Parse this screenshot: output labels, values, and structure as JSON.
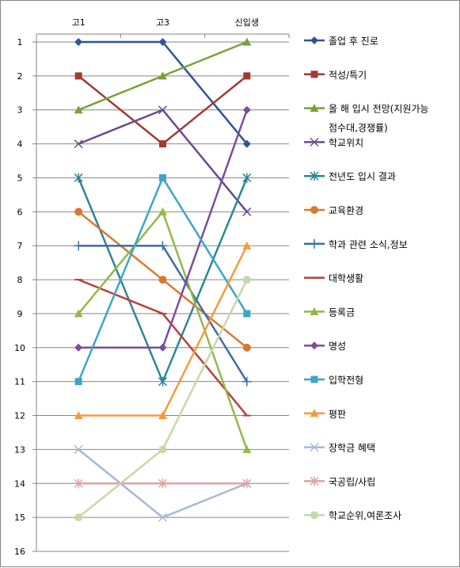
{
  "chart_data": {
    "type": "line",
    "title": "",
    "xlabel": "",
    "ylabel": "",
    "y_reversed": true,
    "ylim": [
      1,
      16
    ],
    "x_axis_position": "top",
    "grid": "horizontal",
    "legend_position": "right",
    "categories": [
      "고1",
      "고3",
      "신입생"
    ],
    "y_ticks": [
      1,
      2,
      3,
      4,
      5,
      6,
      7,
      8,
      9,
      10,
      11,
      12,
      13,
      14,
      15,
      16
    ],
    "series": [
      {
        "name": "졸업 후 진로",
        "values": [
          1,
          1,
          4
        ],
        "color": "#2F5496",
        "marker": "diamond"
      },
      {
        "name": "적성/특기",
        "values": [
          2,
          4,
          2
        ],
        "color": "#A13A33",
        "marker": "square"
      },
      {
        "name": "올 해 입시 전망(지원가능 점수대,경쟁률)",
        "legend_lines": [
          "올 해 입시 전망(지원가능",
          "점수대,경쟁률)"
        ],
        "values": [
          3,
          2,
          1
        ],
        "color": "#78A13A",
        "marker": "triangle"
      },
      {
        "name": "학교위치",
        "values": [
          4,
          3,
          6
        ],
        "color": "#6B4A8E",
        "marker": "x"
      },
      {
        "name": "전년도 입시 결과",
        "values": [
          5,
          11,
          5
        ],
        "color": "#2E8596",
        "marker": "star"
      },
      {
        "name": "교육환경",
        "values": [
          6,
          8,
          10
        ],
        "color": "#D9782E",
        "marker": "circle"
      },
      {
        "name": "학과 관련 소식,정보",
        "values": [
          7,
          7,
          11
        ],
        "color": "#3D6EA8",
        "marker": "plus"
      },
      {
        "name": "대학생활",
        "values": [
          8,
          9,
          12
        ],
        "color": "#B8403B",
        "marker": "dash"
      },
      {
        "name": "등록금",
        "values": [
          9,
          6,
          13
        ],
        "color": "#93B84B",
        "marker": "triangle"
      },
      {
        "name": "명성",
        "values": [
          10,
          10,
          3
        ],
        "color": "#7A4C9E",
        "marker": "diamond"
      },
      {
        "name": "입학전형",
        "values": [
          11,
          5,
          9
        ],
        "color": "#3CA6C4",
        "marker": "square"
      },
      {
        "name": "평판",
        "values": [
          12,
          12,
          7
        ],
        "color": "#F59A3C",
        "marker": "triangle"
      },
      {
        "name": "장학금 혜택",
        "values": [
          13,
          15,
          14
        ],
        "color": "#A6B8D9",
        "marker": "x"
      },
      {
        "name": "국공립/사립",
        "values": [
          14,
          14,
          14
        ],
        "color": "#DBA4A4",
        "marker": "star"
      },
      {
        "name": "학교순위,여론조사",
        "values": [
          15,
          13,
          8
        ],
        "color": "#C4D9A8",
        "marker": "circle"
      }
    ]
  }
}
